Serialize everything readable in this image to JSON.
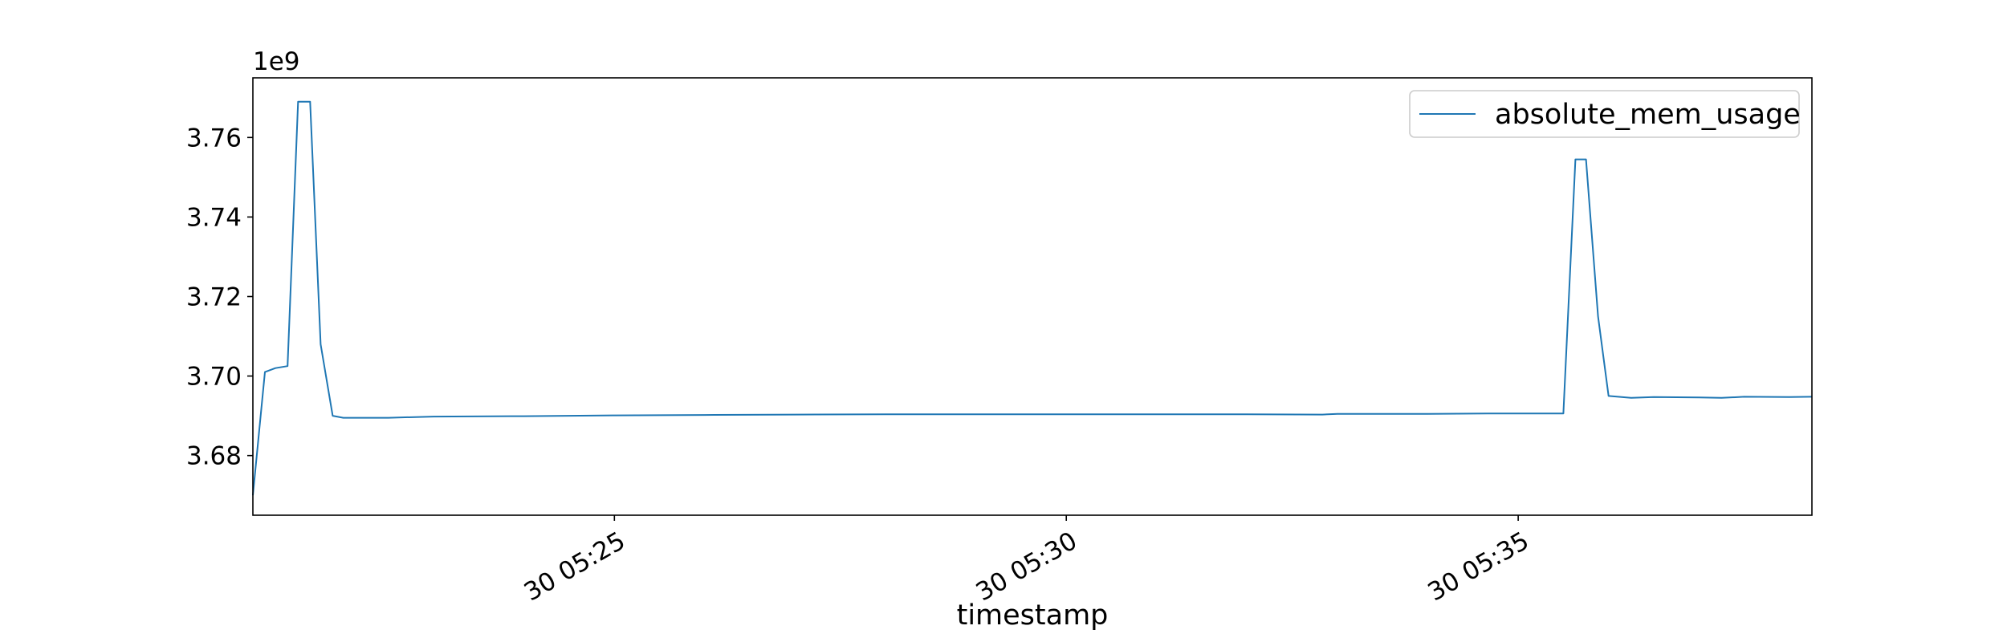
{
  "chart_data": {
    "type": "line",
    "xlabel": "timestamp",
    "ylabel": "",
    "y_offset_text": "1e9",
    "x_domain": [
      "05:21:00",
      "05:38:15"
    ],
    "ylim": [
      3.665,
      3.775
    ],
    "yticks": [
      3.68,
      3.7,
      3.72,
      3.74,
      3.76
    ],
    "xticks": [
      {
        "time": "05:25:00",
        "label": "30 05:25"
      },
      {
        "time": "05:30:00",
        "label": "30 05:30"
      },
      {
        "time": "05:35:00",
        "label": "30 05:35"
      }
    ],
    "legend": {
      "position": "top-right"
    },
    "grid": false,
    "series": [
      {
        "name": "absolute_mem_usage",
        "color": "#1f77b4",
        "points": [
          [
            "05:21:00",
            3.67
          ],
          [
            "05:21:08",
            3.701
          ],
          [
            "05:21:15",
            3.702
          ],
          [
            "05:21:23",
            3.7025
          ],
          [
            "05:21:30",
            3.769
          ],
          [
            "05:21:38",
            3.769
          ],
          [
            "05:21:45",
            3.708
          ],
          [
            "05:21:53",
            3.69
          ],
          [
            "05:22:00",
            3.6895
          ],
          [
            "05:22:30",
            3.6895
          ],
          [
            "05:23:00",
            3.6898
          ],
          [
            "05:24:00",
            3.6899
          ],
          [
            "05:25:00",
            3.6901
          ],
          [
            "05:26:00",
            3.6902
          ],
          [
            "05:27:00",
            3.6903
          ],
          [
            "05:28:00",
            3.6904
          ],
          [
            "05:29:00",
            3.6904
          ],
          [
            "05:30:00",
            3.6904
          ],
          [
            "05:31:00",
            3.6904
          ],
          [
            "05:32:00",
            3.6904
          ],
          [
            "05:32:50",
            3.6903
          ],
          [
            "05:33:00",
            3.6905
          ],
          [
            "05:34:00",
            3.6905
          ],
          [
            "05:34:40",
            3.6906
          ],
          [
            "05:35:30",
            3.6906
          ],
          [
            "05:35:38",
            3.7545
          ],
          [
            "05:35:45",
            3.7545
          ],
          [
            "05:35:53",
            3.715
          ],
          [
            "05:36:00",
            3.695
          ],
          [
            "05:36:15",
            3.6945
          ],
          [
            "05:36:30",
            3.6947
          ],
          [
            "05:37:00",
            3.6946
          ],
          [
            "05:37:15",
            3.6945
          ],
          [
            "05:37:30",
            3.6948
          ],
          [
            "05:38:00",
            3.6947
          ],
          [
            "05:38:15",
            3.6948
          ]
        ]
      }
    ]
  }
}
